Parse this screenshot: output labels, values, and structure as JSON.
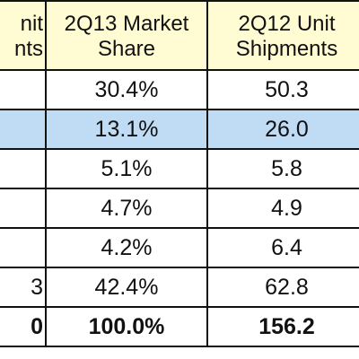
{
  "header": {
    "col0_line1": "nit",
    "col0_line2": "nts",
    "col1_line1": "2Q13 Market",
    "col1_line2": "Share",
    "col2_line1": "2Q12 Unit",
    "col2_line2": "Shipments"
  },
  "rows": [
    {
      "stub": "",
      "share": "30.4%",
      "shipments": "50.3"
    },
    {
      "stub": "",
      "share": "13.1%",
      "shipments": "26.0"
    },
    {
      "stub": "",
      "share": "5.1%",
      "shipments": "5.8"
    },
    {
      "stub": "",
      "share": "4.7%",
      "shipments": "4.9"
    },
    {
      "stub": "",
      "share": "4.2%",
      "shipments": "6.4"
    },
    {
      "stub": "3",
      "share": "42.4%",
      "shipments": "62.8"
    },
    {
      "stub": "0",
      "share": "100.0%",
      "shipments": "156.2"
    }
  ],
  "colors": {
    "header_bg": "#fffbd3",
    "highlight_row_bg": "#bfdcf4",
    "border": "#111111"
  }
}
